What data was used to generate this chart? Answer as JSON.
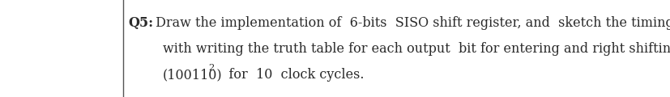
{
  "line1_bold": "Q5:",
  "line1_rest": " Draw the implementation of  6-bits  SISO shift register, and  sketch the timing diagram",
  "line2": "with writing the truth table for each output  bit for entering and right shifting  the data",
  "line3_main": "(100110)",
  "line3_sub": "2",
  "line3_end": "   for  10  clock cycles.",
  "font_size": 11.5,
  "background_color": "#ffffff",
  "text_color": "#2a2a2a",
  "border_color": "#555555",
  "fig_width": 8.28,
  "fig_height": 1.2,
  "dpi": 100
}
